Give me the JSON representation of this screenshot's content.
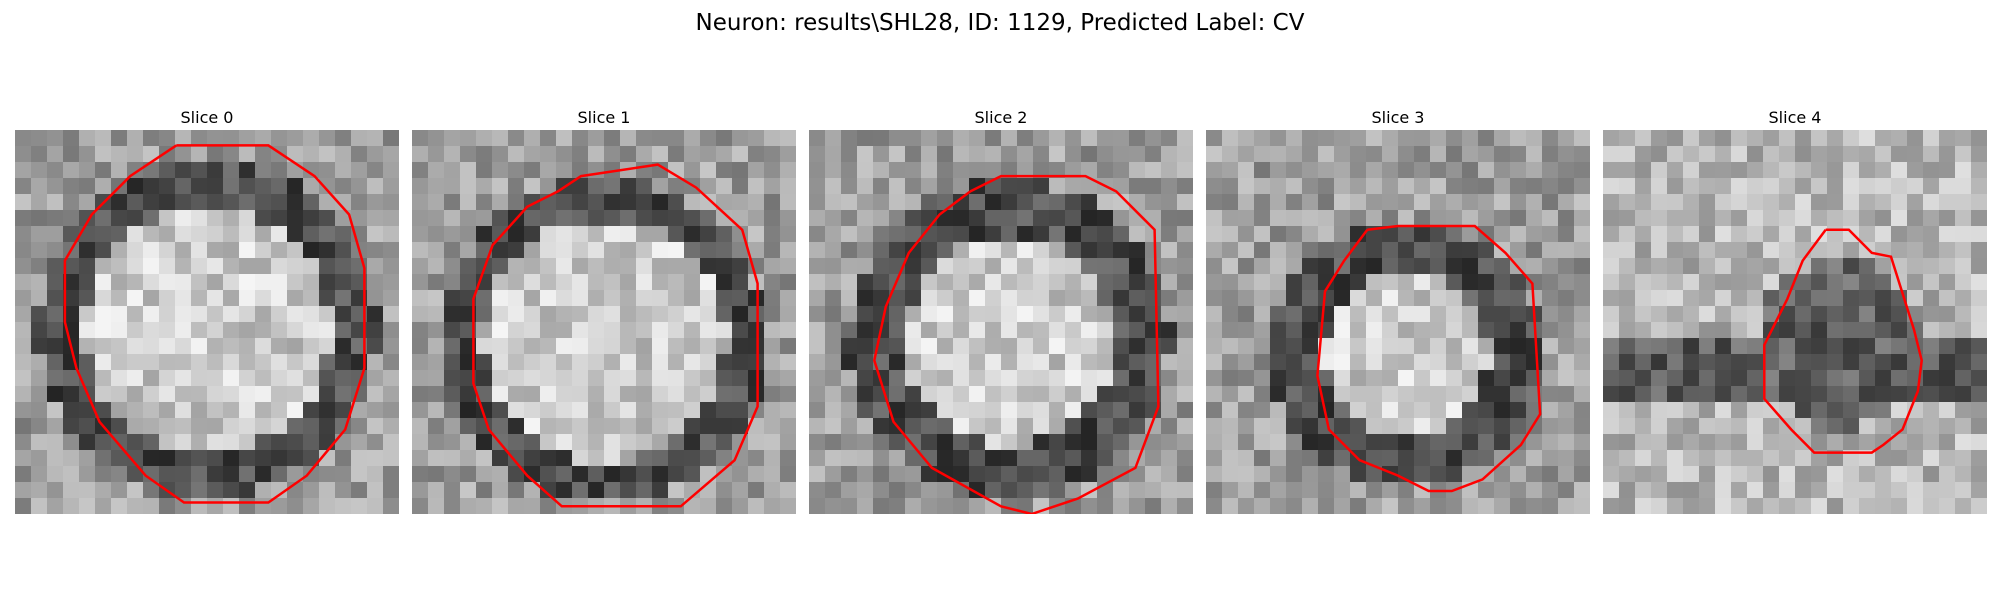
{
  "figure": {
    "title": "Neuron: results\\SHL28, ID: 1129, Predicted Label: CV",
    "contour_color": "#ff0000"
  },
  "slices": [
    {
      "title": "Slice 0"
    },
    {
      "title": "Slice 1"
    },
    {
      "title": "Slice 2"
    },
    {
      "title": "Slice 3"
    },
    {
      "title": "Slice 4"
    }
  ]
}
